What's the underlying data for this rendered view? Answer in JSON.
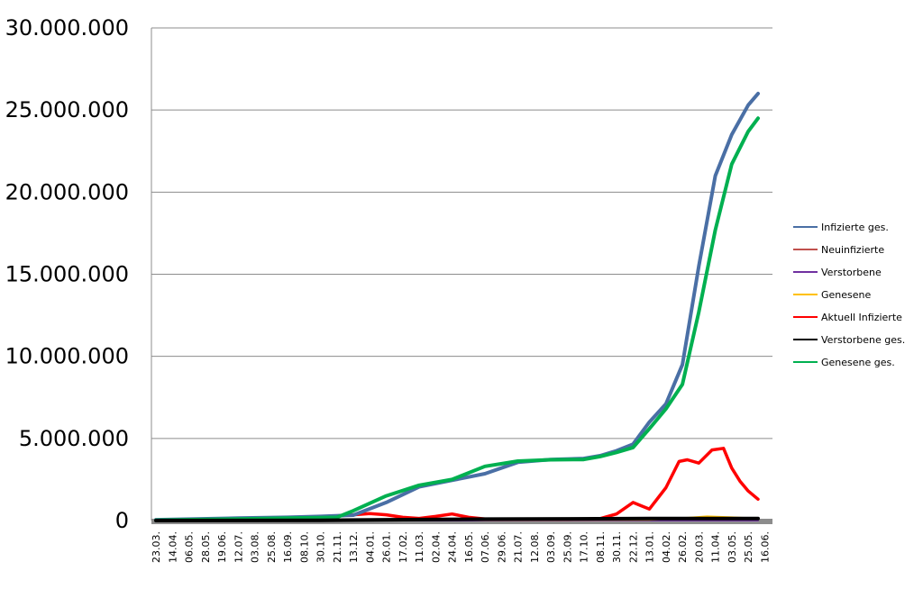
{
  "chart_data": {
    "type": "line",
    "title": "",
    "xlabel": "",
    "ylabel": "",
    "ylim": [
      0,
      30000000
    ],
    "y_ticks": [
      0,
      5000000,
      10000000,
      15000000,
      20000000,
      25000000,
      30000000
    ],
    "y_tick_labels": [
      "0",
      "5.000.000",
      "10.000.000",
      "15.000.000",
      "20.000.000",
      "25.000.000",
      "30.000.000"
    ],
    "x_tick_labels": [
      "23.03.",
      "14.04.",
      "06.05.",
      "28.05.",
      "19.06.",
      "12.07.",
      "03.08.",
      "25.08.",
      "16.09.",
      "08.10.",
      "30.10.",
      "21.11.",
      "13.12.",
      "04.01.",
      "26.01.",
      "17.02.",
      "11.03.",
      "02.04.",
      "24.04.",
      "16.05.",
      "07.06.",
      "29.06.",
      "21.07.",
      "12.08.",
      "03.09.",
      "25.09.",
      "17.10.",
      "08.11.",
      "30.11.",
      "22.12.",
      "13.01.",
      "04.02.",
      "26.02.",
      "20.03.",
      "11.04.",
      "03.05.",
      "25.05.",
      "16.06."
    ],
    "grid": true,
    "legend_position": "right",
    "series": [
      {
        "name": "Infizierte ges.",
        "color": "#4a6fa5",
        "x": [
          0,
          5,
          8,
          10,
          12,
          14,
          16,
          18,
          20,
          22,
          24,
          26,
          27,
          28,
          29,
          30,
          31,
          32,
          33,
          34,
          35,
          36,
          36.6
        ],
        "values": [
          50000,
          150000,
          200000,
          250000,
          330000,
          1100000,
          2050000,
          2450000,
          2850000,
          3550000,
          3720000,
          3780000,
          3950000,
          4250000,
          4650000,
          6000000,
          7100000,
          9500000,
          15500000,
          21000000,
          23500000,
          25300000,
          26000000
        ]
      },
      {
        "name": "Neuinfizierte",
        "color": "#c0504d",
        "x": [
          0,
          10,
          12,
          13,
          14,
          16,
          18,
          20,
          30,
          32,
          34,
          36,
          36.6
        ],
        "values": [
          10000,
          20000,
          40000,
          45000,
          30000,
          15000,
          40000,
          20000,
          30000,
          60000,
          80000,
          70000,
          50000
        ]
      },
      {
        "name": "Verstorbene",
        "color": "#7030a0",
        "x": [
          0,
          36.6
        ],
        "values": [
          1000,
          3000
        ]
      },
      {
        "name": "Genesene",
        "color": "#ffc000",
        "x": [
          0,
          10,
          12,
          13,
          14,
          16,
          18,
          20,
          30,
          32,
          33.5,
          35,
          36,
          36.6
        ],
        "values": [
          10000,
          30000,
          50000,
          60000,
          40000,
          30000,
          50000,
          30000,
          50000,
          150000,
          250000,
          200000,
          150000,
          120000
        ]
      },
      {
        "name": "Aktuell Infizierte",
        "color": "#ff0000",
        "x": [
          0,
          5,
          9,
          10.5,
          12,
          13,
          14,
          15,
          16,
          17,
          18,
          19,
          20,
          21,
          25,
          27,
          28,
          29,
          29.5,
          30,
          31,
          31.8,
          32.3,
          33,
          33.8,
          34.5,
          35,
          35.5,
          36,
          36.6
        ],
        "values": [
          20000,
          30000,
          80000,
          250000,
          350000,
          420000,
          350000,
          200000,
          130000,
          250000,
          400000,
          200000,
          100000,
          80000,
          60000,
          120000,
          400000,
          1100000,
          900000,
          700000,
          2000000,
          3600000,
          3700000,
          3500000,
          4300000,
          4400000,
          3200000,
          2400000,
          1800000,
          1300000
        ]
      },
      {
        "name": "Verstorbene ges.",
        "color": "#000000",
        "x": [
          0,
          10,
          16,
          20,
          30,
          36.6
        ],
        "values": [
          2000,
          15000,
          60000,
          90000,
          120000,
          125000
        ]
      },
      {
        "name": "Genesene ges.",
        "color": "#00b050",
        "x": [
          0,
          5,
          8,
          10,
          11,
          12,
          14,
          16,
          18,
          20,
          22,
          24,
          26,
          27,
          28,
          29,
          30,
          31,
          32,
          33,
          34,
          35,
          36,
          36.6
        ],
        "values": [
          20000,
          100000,
          150000,
          180000,
          200000,
          600000,
          1500000,
          2150000,
          2500000,
          3300000,
          3620000,
          3700000,
          3720000,
          3900000,
          4150000,
          4450000,
          5600000,
          6800000,
          8300000,
          12700000,
          17700000,
          21700000,
          23700000,
          24500000
        ]
      }
    ]
  }
}
